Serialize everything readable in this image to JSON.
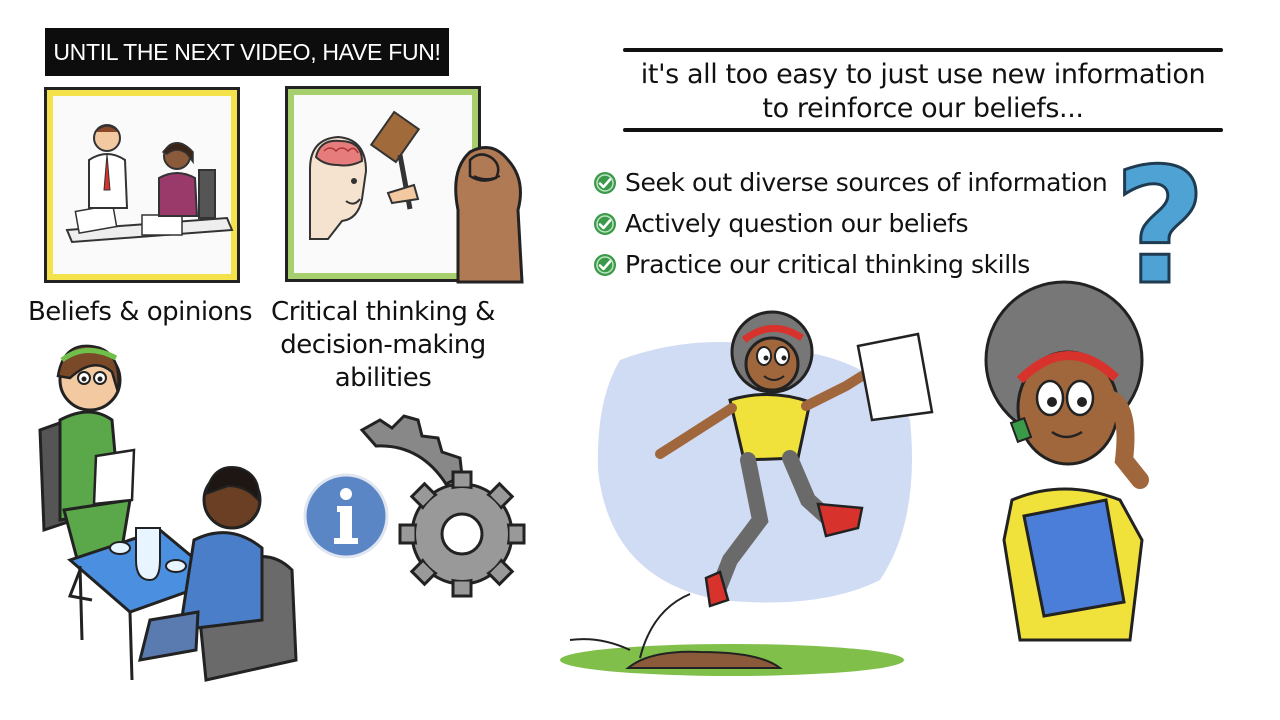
{
  "banner": {
    "text": "UNTIL THE NEXT VIDEO, HAVE FUN!"
  },
  "panels": [
    {
      "caption": "Beliefs & opinions"
    },
    {
      "caption": "Critical thinking & decision-making abilities"
    }
  ],
  "quote": {
    "line1": "it's all too easy to just use new information",
    "line2": "to reinforce our beliefs..."
  },
  "tips": [
    {
      "label": "Seek out diverse sources of information"
    },
    {
      "label": "Actively question our beliefs"
    },
    {
      "label": "Practice our critical thinking skills"
    }
  ],
  "icons": {
    "check": "check-circle-icon",
    "info": "info-icon",
    "question": "question-mark-icon",
    "gears": "gears-icon"
  },
  "colors": {
    "check_green": "#3a9a4a",
    "frame_yellow": "#f4e24a",
    "frame_green": "#a8cf6d",
    "info_blue": "#5b86c6",
    "question_blue": "#4fa3d4",
    "accent_red": "#d8322c"
  }
}
